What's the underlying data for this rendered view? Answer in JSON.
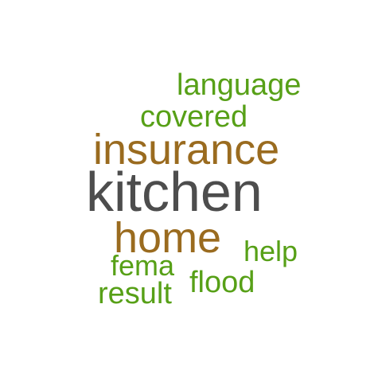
{
  "words": [
    {
      "text": "language",
      "color": "#57a017"
    },
    {
      "text": "covered",
      "color": "#57a017"
    },
    {
      "text": "insurance",
      "color": "#9a6b1f"
    },
    {
      "text": "kitchen",
      "color": "#4d4d4d"
    },
    {
      "text": "home",
      "color": "#9a6b1f"
    },
    {
      "text": "help",
      "color": "#57a017"
    },
    {
      "text": "fema",
      "color": "#57a017"
    },
    {
      "text": "flood",
      "color": "#57a017"
    },
    {
      "text": "result",
      "color": "#57a017"
    }
  ]
}
